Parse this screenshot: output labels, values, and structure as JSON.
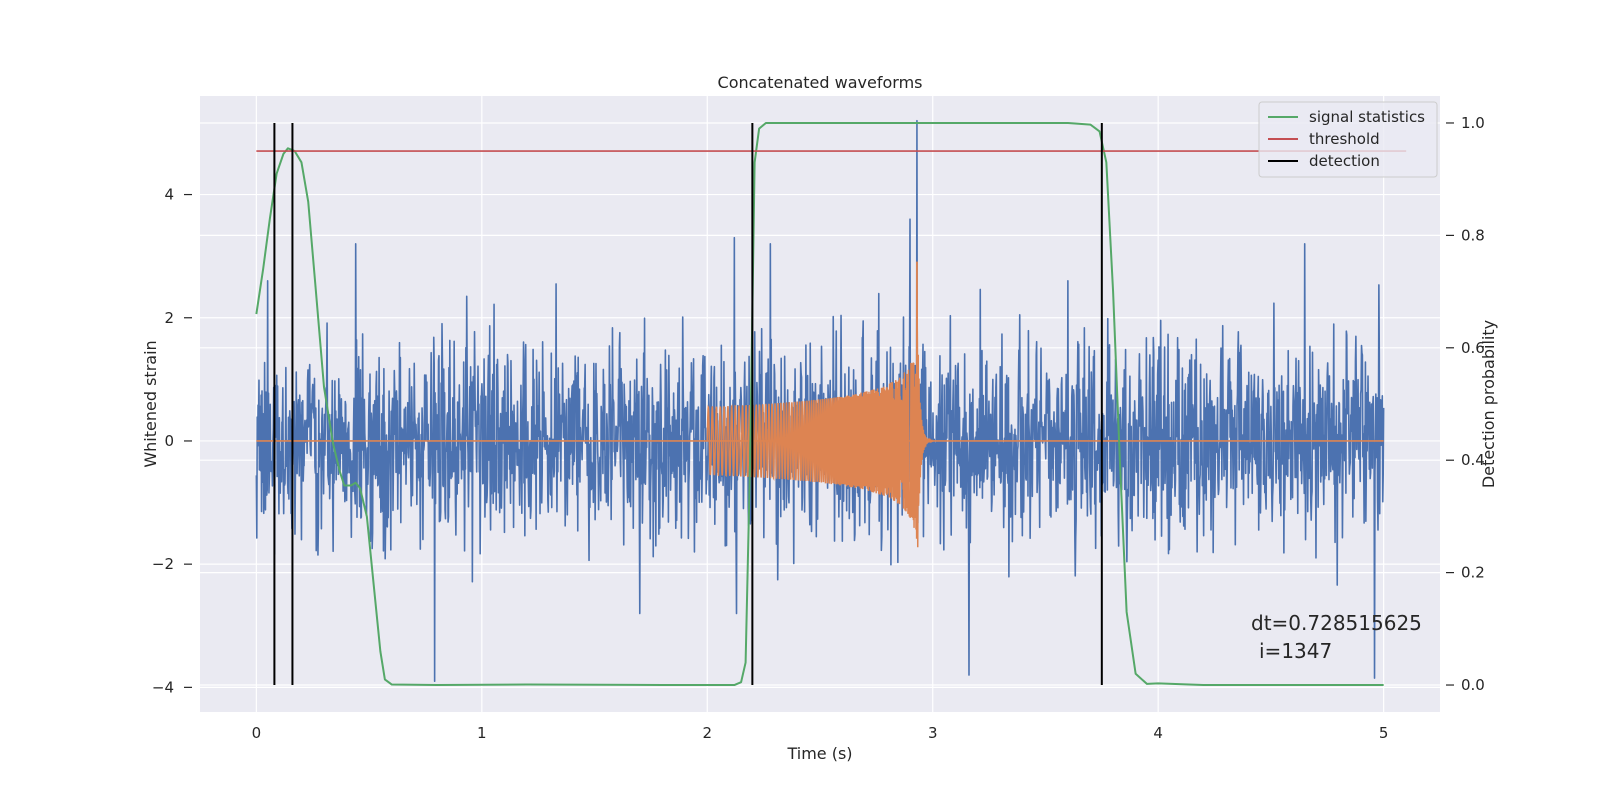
{
  "chart_data": {
    "type": "line",
    "title": "Concatenated waveforms",
    "xlabel": "Time (s)",
    "ylabel_left": "Whitened strain",
    "ylabel_right": "Detection probability",
    "xlim": [
      -0.25,
      5.25
    ],
    "ylim_left": [
      -4.4,
      5.6
    ],
    "ylim_right": [
      -0.048,
      1.048
    ],
    "xticks": [
      0,
      1,
      2,
      3,
      4,
      5
    ],
    "yticks_left": [
      -4,
      -2,
      0,
      2,
      4
    ],
    "yticks_right": [
      0.0,
      0.2,
      0.4,
      0.6,
      0.8,
      1.0
    ],
    "grid": true,
    "legend_position": "top-right",
    "legend": [
      {
        "name": "signal statistics",
        "color": "#55a868"
      },
      {
        "name": "threshold",
        "color": "#c44e52"
      },
      {
        "name": "detection",
        "color": "#000000"
      }
    ],
    "annotations": [
      "dt=0.728515625",
      "i=1347"
    ],
    "series": [
      {
        "name": "whitened strain",
        "color": "#4c72b0",
        "axis": "left",
        "x_range": [
          0,
          5
        ],
        "typical_amplitude": 1.0,
        "peak_values": [
          {
            "x": 0.05,
            "y": 2.6
          },
          {
            "x": 0.44,
            "y": 3.2
          },
          {
            "x": 0.79,
            "y": -3.9
          },
          {
            "x": 1.7,
            "y": -2.8
          },
          {
            "x": 2.12,
            "y": 3.3
          },
          {
            "x": 2.28,
            "y": 3.2
          },
          {
            "x": 2.9,
            "y": 3.6
          },
          {
            "x": 2.93,
            "y": 5.2
          },
          {
            "x": 3.16,
            "y": -3.8
          },
          {
            "x": 3.6,
            "y": 2.6
          },
          {
            "x": 4.65,
            "y": 3.2
          },
          {
            "x": 4.96,
            "y": -3.85
          }
        ]
      },
      {
        "name": "waveform",
        "color": "#dd8452",
        "axis": "left",
        "x_range": [
          2.0,
          3.0
        ],
        "start_amplitude": 0.55,
        "peak_x": 2.93,
        "peak_y": 2.9,
        "peak_min": -2.1
      },
      {
        "name": "signal statistics",
        "color": "#55a868",
        "axis": "right",
        "points": [
          [
            0.0,
            0.66
          ],
          [
            0.03,
            0.74
          ],
          [
            0.06,
            0.83
          ],
          [
            0.09,
            0.91
          ],
          [
            0.12,
            0.945
          ],
          [
            0.14,
            0.955
          ],
          [
            0.17,
            0.95
          ],
          [
            0.2,
            0.93
          ],
          [
            0.23,
            0.86
          ],
          [
            0.26,
            0.72
          ],
          [
            0.3,
            0.53
          ],
          [
            0.34,
            0.43
          ],
          [
            0.37,
            0.38
          ],
          [
            0.39,
            0.355
          ],
          [
            0.42,
            0.355
          ],
          [
            0.44,
            0.36
          ],
          [
            0.46,
            0.35
          ],
          [
            0.49,
            0.3
          ],
          [
            0.52,
            0.18
          ],
          [
            0.55,
            0.06
          ],
          [
            0.57,
            0.01
          ],
          [
            0.6,
            0.001
          ],
          [
            0.8,
            0.0
          ],
          [
            1.2,
            0.001
          ],
          [
            1.8,
            0.0
          ],
          [
            2.12,
            0.0
          ],
          [
            2.15,
            0.005
          ],
          [
            2.17,
            0.04
          ],
          [
            2.19,
            0.4
          ],
          [
            2.21,
            0.93
          ],
          [
            2.23,
            0.99
          ],
          [
            2.26,
            1.0
          ],
          [
            3.6,
            1.0
          ],
          [
            3.7,
            0.997
          ],
          [
            3.74,
            0.985
          ],
          [
            3.77,
            0.93
          ],
          [
            3.8,
            0.7
          ],
          [
            3.83,
            0.4
          ],
          [
            3.86,
            0.13
          ],
          [
            3.9,
            0.02
          ],
          [
            3.95,
            0.002
          ],
          [
            4.0,
            0.003
          ],
          [
            4.2,
            0.0
          ],
          [
            5.0,
            0.0
          ]
        ]
      },
      {
        "name": "threshold",
        "color": "#c44e52",
        "axis": "right",
        "value": 0.95,
        "x_range": [
          0,
          5.1
        ]
      },
      {
        "name": "detection",
        "color": "#000000",
        "axis": "right",
        "x_values": [
          0.08,
          0.16,
          2.2,
          3.75
        ],
        "y_range": [
          0,
          1.0
        ]
      }
    ]
  }
}
